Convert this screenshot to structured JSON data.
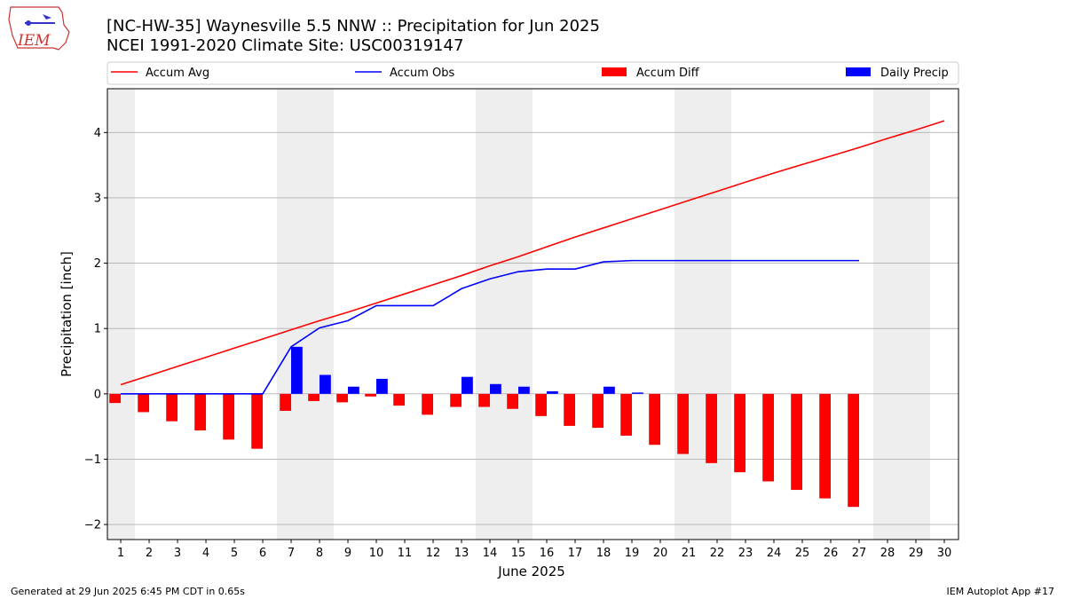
{
  "logo_text": "IEM",
  "footer_left": "Generated at 29 Jun 2025 6:45 PM CDT in 0.65s",
  "footer_right": "IEM Autoplot App #17",
  "chart_data": {
    "type": "combo",
    "title": "[NC-HW-35] Waynesville 5.5 NNW :: Precipitation for Jun 2025",
    "subtitle": "NCEI 1991-2020 Climate Site: USC00319147",
    "xlabel": "June 2025",
    "ylabel": "Precipitation [inch]",
    "x": [
      1,
      2,
      3,
      4,
      5,
      6,
      7,
      8,
      9,
      10,
      11,
      12,
      13,
      14,
      15,
      16,
      17,
      18,
      19,
      20,
      21,
      22,
      23,
      24,
      25,
      26,
      27,
      28,
      29,
      30
    ],
    "xlim": [
      0.53,
      30.5
    ],
    "xticks": [
      1,
      2,
      3,
      4,
      5,
      6,
      7,
      8,
      9,
      10,
      11,
      12,
      13,
      14,
      15,
      16,
      17,
      18,
      19,
      20,
      21,
      22,
      23,
      24,
      25,
      26,
      27,
      28,
      29,
      30
    ],
    "ylim": [
      -2.23,
      4.67
    ],
    "yticks": [
      {
        "value": -2,
        "label": "−2"
      },
      {
        "value": -1,
        "label": "−1"
      },
      0,
      1,
      2,
      3,
      4
    ],
    "grid": true,
    "shaded_days": [
      1,
      7,
      8,
      14,
      15,
      21,
      22,
      28,
      29
    ],
    "shade_color": "#eeeeee",
    "legend": "top",
    "series": [
      {
        "name": "Accum Avg",
        "type": "line",
        "color": "#ff0000",
        "values": [
          0.14,
          0.28,
          0.42,
          0.56,
          0.7,
          0.84,
          0.98,
          1.12,
          1.25,
          1.39,
          1.53,
          1.67,
          1.81,
          1.96,
          2.1,
          2.25,
          2.4,
          2.54,
          2.68,
          2.82,
          2.96,
          3.1,
          3.24,
          3.38,
          3.51,
          3.64,
          3.77,
          3.91,
          4.04,
          4.18
        ]
      },
      {
        "name": "Accum Obs",
        "type": "line",
        "color": "#0000ff",
        "values": [
          0,
          0,
          0,
          0,
          0,
          0,
          0.72,
          1.01,
          1.12,
          1.35,
          1.35,
          1.35,
          1.61,
          1.76,
          1.87,
          1.91,
          1.91,
          2.02,
          2.04,
          2.04,
          2.04,
          2.04,
          2.04,
          2.04,
          2.04,
          2.04,
          2.04,
          null,
          null,
          null
        ]
      },
      {
        "name": "Accum Diff",
        "type": "bar",
        "offset": "left",
        "color": "#ff0000",
        "values": [
          -0.14,
          -0.28,
          -0.42,
          -0.56,
          -0.7,
          -0.84,
          -0.26,
          -0.11,
          -0.13,
          -0.04,
          -0.18,
          -0.32,
          -0.2,
          -0.2,
          -0.23,
          -0.34,
          -0.49,
          -0.52,
          -0.64,
          -0.78,
          -0.92,
          -1.06,
          -1.2,
          -1.34,
          -1.47,
          -1.6,
          -1.73,
          null,
          null,
          null
        ]
      },
      {
        "name": "Daily Precip",
        "type": "bar",
        "offset": "right",
        "color": "#0000ff",
        "values": [
          0,
          0,
          0,
          0,
          0,
          0,
          0.72,
          0.29,
          0.11,
          0.23,
          0,
          0,
          0.26,
          0.15,
          0.11,
          0.04,
          0,
          0.11,
          0.02,
          0,
          0,
          0,
          0,
          0,
          0,
          0,
          0,
          null,
          null,
          null
        ]
      }
    ]
  }
}
